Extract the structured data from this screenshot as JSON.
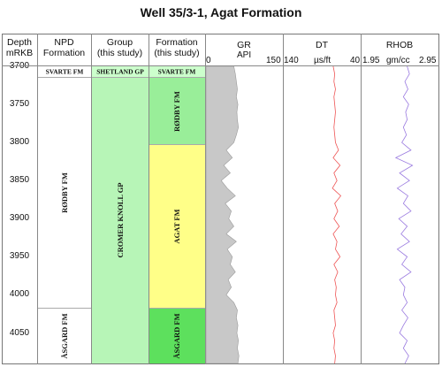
{
  "title": "Well  35/3-1, Agat Formation",
  "headers": {
    "depth": [
      "Depth",
      "mRKB"
    ],
    "npd": [
      "NPD",
      "Formation"
    ],
    "group": [
      "Group",
      "(this study)"
    ],
    "formation": [
      "Formation",
      "(this study)"
    ],
    "gr": [
      "GR",
      "API"
    ],
    "dt": [
      "DT",
      "µs/ft"
    ],
    "rhob": [
      "RHOB",
      "gm/cc"
    ]
  },
  "scales": {
    "gr": {
      "min_label": "0",
      "max_label": "150"
    },
    "dt": {
      "min_label": "140",
      "max_label": "40"
    },
    "rhob": {
      "min_label": "1.95",
      "max_label": "2.95"
    }
  },
  "colors": {
    "shetland_green": "#ccffcc",
    "cromer_green": "#b7f5b7",
    "rodby_green": "#99ee99",
    "agat_yellow": "#ffff88",
    "asgard_green": "#5de05d",
    "gr_fill": "#c8c8c8",
    "dt_curve": "#ee5555",
    "rhob_curve": "#9a7ae0"
  },
  "chart_data": {
    "type": "line",
    "title": "Well  35/3-1, Agat Formation",
    "depth_range": [
      3700,
      4090
    ],
    "depth_ticks": [
      "3700",
      "3750",
      "3800",
      "3850",
      "3900",
      "3950",
      "4000",
      "4050"
    ],
    "npd_formations": [
      {
        "name": "SVARTE FM",
        "top": 3700,
        "base": 3715
      },
      {
        "name": "RØDBY FM",
        "top": 3715,
        "base": 4018
      },
      {
        "name": "ÅSGARD FM",
        "top": 4018,
        "base": 4090
      }
    ],
    "groups": [
      {
        "name": "SHETLAND GP",
        "top": 3700,
        "base": 3715
      },
      {
        "name": "CROMER KNOLL GP",
        "top": 3715,
        "base": 4090
      }
    ],
    "formations": [
      {
        "name": "SVARTE FM",
        "top": 3700,
        "base": 3715
      },
      {
        "name": "RØDBY FM",
        "top": 3715,
        "base": 3803
      },
      {
        "name": "AGAT FM",
        "top": 3803,
        "base": 4018
      },
      {
        "name": "ÅSGARD FM",
        "top": 4018,
        "base": 4090
      }
    ],
    "series": [
      {
        "name": "GR",
        "unit": "API",
        "xlim": [
          0,
          150
        ],
        "depth": [
          3700,
          3710,
          3720,
          3730,
          3740,
          3750,
          3760,
          3770,
          3780,
          3790,
          3800,
          3810,
          3820,
          3830,
          3840,
          3850,
          3860,
          3870,
          3880,
          3890,
          3900,
          3910,
          3920,
          3930,
          3940,
          3950,
          3960,
          3970,
          3980,
          3990,
          4000,
          4010,
          4020,
          4030,
          4040,
          4050,
          4060,
          4070,
          4080,
          4090
        ],
        "values": [
          55,
          58,
          60,
          62,
          60,
          63,
          61,
          62,
          64,
          60,
          55,
          40,
          52,
          35,
          48,
          30,
          42,
          58,
          38,
          50,
          45,
          55,
          40,
          60,
          42,
          52,
          48,
          58,
          44,
          50,
          40,
          55,
          62,
          60,
          63,
          61,
          64,
          62,
          65,
          63
        ]
      },
      {
        "name": "DT",
        "unit": "µs/ft",
        "xlim": [
          140,
          40
        ],
        "depth": [
          3700,
          3710,
          3720,
          3730,
          3740,
          3750,
          3760,
          3770,
          3780,
          3790,
          3800,
          3810,
          3820,
          3830,
          3840,
          3850,
          3860,
          3870,
          3880,
          3890,
          3900,
          3910,
          3920,
          3930,
          3940,
          3950,
          3960,
          3970,
          3980,
          3990,
          4000,
          4010,
          4020,
          4030,
          4040,
          4050,
          4060,
          4070,
          4080,
          4090
        ],
        "values": [
          75,
          73,
          74,
          72,
          74,
          73,
          72,
          73,
          74,
          73,
          72,
          68,
          75,
          66,
          74,
          70,
          76,
          65,
          73,
          69,
          74,
          67,
          75,
          70,
          72,
          66,
          74,
          69,
          73,
          71,
          72,
          70,
          74,
          73,
          72,
          75,
          73,
          74,
          72,
          73
        ]
      },
      {
        "name": "RHOB",
        "unit": "gm/cc",
        "xlim": [
          1.95,
          2.95
        ],
        "depth": [
          3700,
          3710,
          3720,
          3730,
          3740,
          3750,
          3760,
          3770,
          3780,
          3790,
          3800,
          3810,
          3820,
          3830,
          3840,
          3850,
          3860,
          3870,
          3880,
          3890,
          3900,
          3910,
          3920,
          3930,
          3940,
          3950,
          3960,
          3970,
          3980,
          3990,
          4000,
          4010,
          4020,
          4030,
          4040,
          4050,
          4060,
          4070,
          4080,
          4090
        ],
        "values": [
          2.55,
          2.58,
          2.52,
          2.56,
          2.5,
          2.57,
          2.53,
          2.55,
          2.5,
          2.54,
          2.48,
          2.6,
          2.4,
          2.62,
          2.45,
          2.58,
          2.42,
          2.56,
          2.5,
          2.6,
          2.44,
          2.55,
          2.47,
          2.58,
          2.42,
          2.55,
          2.48,
          2.6,
          2.45,
          2.52,
          2.5,
          2.55,
          2.48,
          2.56,
          2.5,
          2.45,
          2.55,
          2.5,
          2.57,
          2.52
        ]
      }
    ]
  }
}
